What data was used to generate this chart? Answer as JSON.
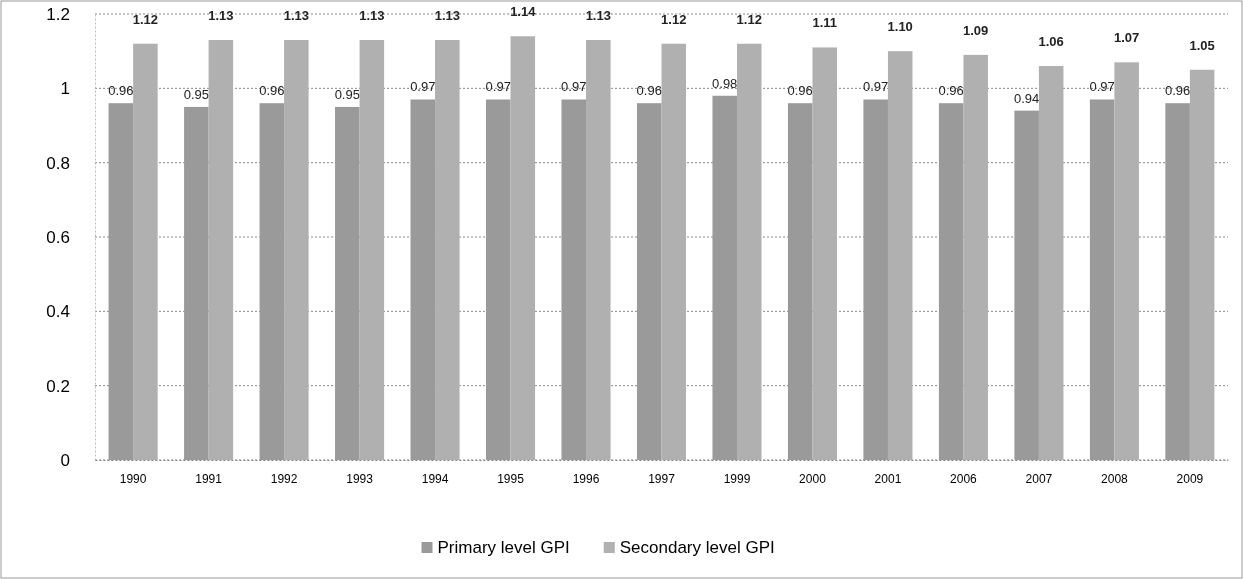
{
  "chart_data": {
    "type": "bar",
    "categories": [
      "1990",
      "1991",
      "1992",
      "1993",
      "1994",
      "1995",
      "1996",
      "1997",
      "1999",
      "2000",
      "2001",
      "2006",
      "2007",
      "2008",
      "2009"
    ],
    "series": [
      {
        "name": "Primary level GPI",
        "color": "#9a9a9a",
        "values": [
          0.96,
          0.95,
          0.96,
          0.95,
          0.97,
          0.97,
          0.97,
          0.96,
          0.98,
          0.96,
          0.97,
          0.96,
          0.94,
          0.97,
          0.96
        ],
        "value_labels": [
          "0.96",
          "0.95",
          "0.96",
          "0.95",
          "0.97",
          "0.97",
          "0.97",
          "0.96",
          "0.98",
          "0.96",
          "0.97",
          "0.96",
          "0.94",
          "0.97",
          "0.96"
        ]
      },
      {
        "name": "Secondary level GPI",
        "color": "#b0b0b0",
        "values": [
          1.12,
          1.13,
          1.13,
          1.13,
          1.13,
          1.14,
          1.13,
          1.12,
          1.12,
          1.11,
          1.1,
          1.09,
          1.06,
          1.07,
          1.05
        ],
        "value_labels": [
          "1.12",
          "1.13",
          "1.13",
          "1.13",
          "1.13",
          "1.14",
          "1.13",
          "1.12",
          "1.12",
          "1.11",
          "1.10",
          "1.09",
          "1.06",
          "1.07",
          "1.05"
        ]
      }
    ],
    "ylim": [
      0,
      1.2
    ],
    "yticks": [
      0,
      0.2,
      0.4,
      0.6,
      0.8,
      1,
      1.2
    ],
    "grid": "y",
    "legend": "bottom"
  }
}
